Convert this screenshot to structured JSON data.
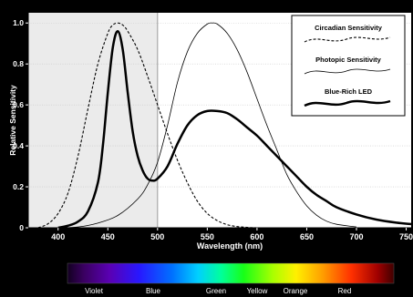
{
  "chart_data": {
    "type": "line",
    "xlabel": "Wavelength (nm)",
    "ylabel": "Relative Sensitivity",
    "xlim": [
      370,
      755
    ],
    "ylim": [
      0,
      1.05
    ],
    "x_ticks": [
      400,
      450,
      500,
      550,
      600,
      650,
      700,
      750
    ],
    "y_ticks": [
      0,
      0.2,
      0.4,
      0.6,
      0.8,
      1.0
    ],
    "y_tick_labels": [
      "0",
      "0.2",
      "0.4",
      "0.6",
      "0.8",
      "1.0"
    ],
    "shaded_region": [
      370,
      500
    ],
    "legend_position": "top-right",
    "series": [
      {
        "name": "Circadian Sensitivity",
        "style": "dashed",
        "x": [
          380,
          390,
          400,
          410,
          420,
          430,
          440,
          450,
          455,
          460,
          465,
          470,
          480,
          490,
          500,
          510,
          520,
          530,
          540,
          550,
          560,
          570,
          580,
          590,
          600,
          610,
          620,
          630
        ],
        "y": [
          0.0,
          0.02,
          0.07,
          0.17,
          0.35,
          0.58,
          0.8,
          0.95,
          0.99,
          1.0,
          0.99,
          0.96,
          0.87,
          0.74,
          0.6,
          0.46,
          0.33,
          0.22,
          0.13,
          0.07,
          0.035,
          0.015,
          0.006,
          0.002,
          0.0,
          0.0,
          0.0,
          0.0
        ]
      },
      {
        "name": "Photopic Sensitivity",
        "style": "thin",
        "x": [
          400,
          420,
          440,
          460,
          480,
          490,
          500,
          510,
          520,
          530,
          540,
          550,
          555,
          560,
          570,
          580,
          590,
          600,
          610,
          620,
          630,
          640,
          650,
          660,
          670,
          680,
          700
        ],
        "y": [
          0.0,
          0.004,
          0.023,
          0.06,
          0.14,
          0.21,
          0.32,
          0.5,
          0.71,
          0.86,
          0.95,
          0.995,
          1.0,
          0.995,
          0.95,
          0.87,
          0.76,
          0.63,
          0.5,
          0.38,
          0.26,
          0.175,
          0.107,
          0.061,
          0.032,
          0.017,
          0.004
        ]
      },
      {
        "name": "Blue-Rich LED",
        "style": "bold",
        "x": [
          400,
          410,
          420,
          430,
          440,
          445,
          450,
          455,
          460,
          465,
          470,
          475,
          480,
          485,
          490,
          495,
          500,
          510,
          520,
          530,
          540,
          550,
          560,
          570,
          580,
          590,
          600,
          610,
          620,
          630,
          640,
          650,
          660,
          670,
          680,
          700,
          720,
          740,
          755
        ],
        "y": [
          0.0,
          0.01,
          0.03,
          0.08,
          0.22,
          0.4,
          0.66,
          0.88,
          0.96,
          0.87,
          0.66,
          0.47,
          0.35,
          0.28,
          0.24,
          0.23,
          0.24,
          0.3,
          0.41,
          0.5,
          0.55,
          0.57,
          0.57,
          0.56,
          0.53,
          0.49,
          0.45,
          0.4,
          0.35,
          0.3,
          0.25,
          0.2,
          0.16,
          0.13,
          0.1,
          0.065,
          0.04,
          0.025,
          0.018
        ]
      }
    ]
  },
  "spectrum_labels": [
    "Violet",
    "Blue",
    "Green",
    "Yellow",
    "Orange",
    "Red"
  ]
}
